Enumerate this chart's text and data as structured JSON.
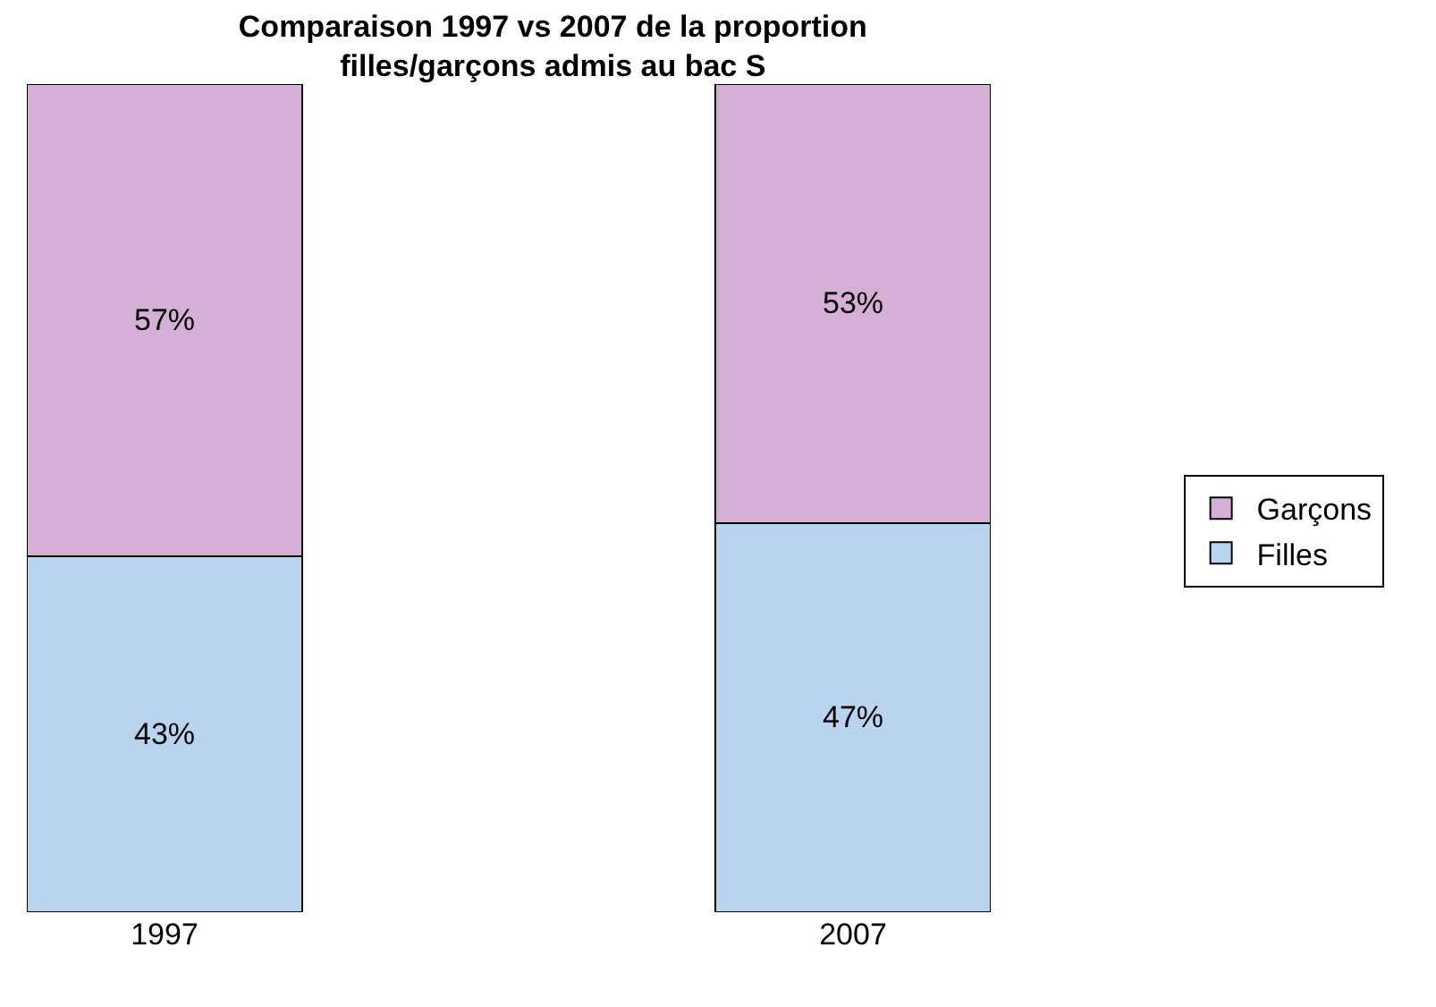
{
  "chart_data": {
    "type": "bar",
    "title": "Comparaison 1997 vs 2007 de la proportion filles/garçons admis au bac S",
    "categories": [
      "1997",
      "2007"
    ],
    "stacked": true,
    "legend": "right",
    "series": [
      {
        "name": "Filles",
        "color": "#b9d4ef",
        "values": [
          43,
          47
        ],
        "value_labels": [
          "43%",
          "47%"
        ]
      },
      {
        "name": "Garçons",
        "color": "#d6afd7",
        "values": [
          57,
          53
        ],
        "value_labels": [
          "57%",
          "53%"
        ]
      }
    ]
  }
}
